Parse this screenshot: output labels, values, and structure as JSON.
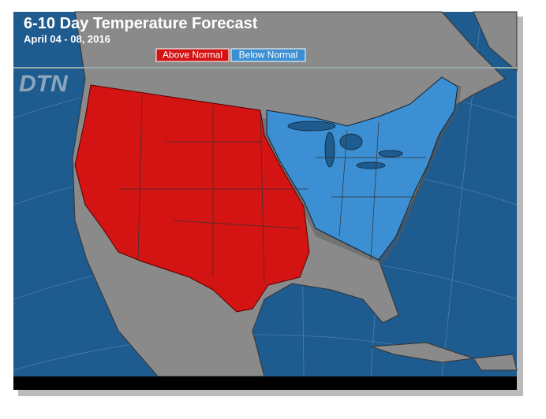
{
  "header": {
    "title": "6-10 Day Temperature Forecast",
    "subtitle": "April 04 - 08, 2016",
    "logo": "DTN"
  },
  "legend": [
    {
      "label": "Above Normal",
      "color": "#d41313"
    },
    {
      "label": "Below Normal",
      "color": "#3b8fd2"
    }
  ]
}
